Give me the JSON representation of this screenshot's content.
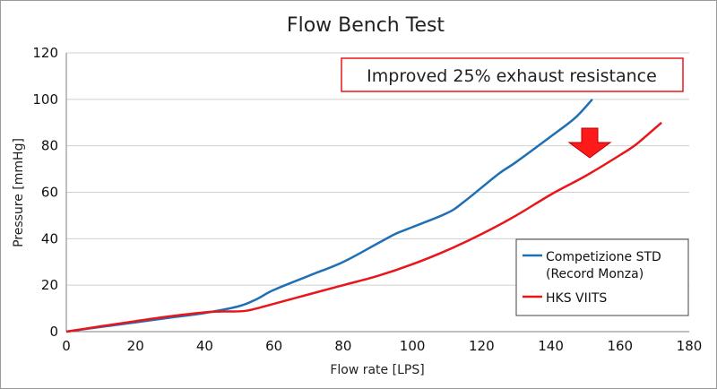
{
  "chart_data": {
    "type": "line",
    "title": "Flow Bench Test",
    "xlabel": "Flow rate [LPS]",
    "ylabel": "Pressure [mmHg]",
    "xlim": [
      0,
      180
    ],
    "ylim": [
      0,
      120
    ],
    "x_ticks": [
      "0",
      "20",
      "40",
      "60",
      "80",
      "100",
      "120",
      "140",
      "160",
      "180"
    ],
    "y_ticks": [
      "0",
      "20",
      "40",
      "60",
      "80",
      "100",
      "120"
    ],
    "grid": "horizontal",
    "legend_position": "bottom-right",
    "annotation": "Improved 25% exhaust resistance",
    "series": [
      {
        "name_lines": [
          "Competizione STD",
          "(Record Monza)"
        ],
        "color": "#1f6fb5",
        "points": [
          [
            0,
            0
          ],
          [
            10,
            2
          ],
          [
            20,
            4
          ],
          [
            30,
            6
          ],
          [
            40,
            8
          ],
          [
            50,
            11
          ],
          [
            55,
            14
          ],
          [
            60,
            18
          ],
          [
            70,
            24
          ],
          [
            80,
            30
          ],
          [
            90,
            38
          ],
          [
            95,
            42
          ],
          [
            100,
            45
          ],
          [
            110,
            51
          ],
          [
            115,
            56
          ],
          [
            125,
            68
          ],
          [
            130,
            73
          ],
          [
            140,
            84
          ],
          [
            147,
            92
          ],
          [
            152,
            100
          ]
        ]
      },
      {
        "name_lines": [
          "HKS VIITS"
        ],
        "color": "#e8161b",
        "points": [
          [
            0,
            0
          ],
          [
            10,
            2.3
          ],
          [
            20,
            4.5
          ],
          [
            30,
            6.6
          ],
          [
            40,
            8.3
          ],
          [
            45,
            8.7
          ],
          [
            52,
            9
          ],
          [
            60,
            12
          ],
          [
            70,
            16
          ],
          [
            80,
            20
          ],
          [
            90,
            24
          ],
          [
            100,
            29
          ],
          [
            110,
            35
          ],
          [
            120,
            42
          ],
          [
            130,
            50
          ],
          [
            140,
            59
          ],
          [
            150,
            67
          ],
          [
            160,
            76
          ],
          [
            165,
            81
          ],
          [
            172,
            90
          ]
        ]
      }
    ]
  }
}
